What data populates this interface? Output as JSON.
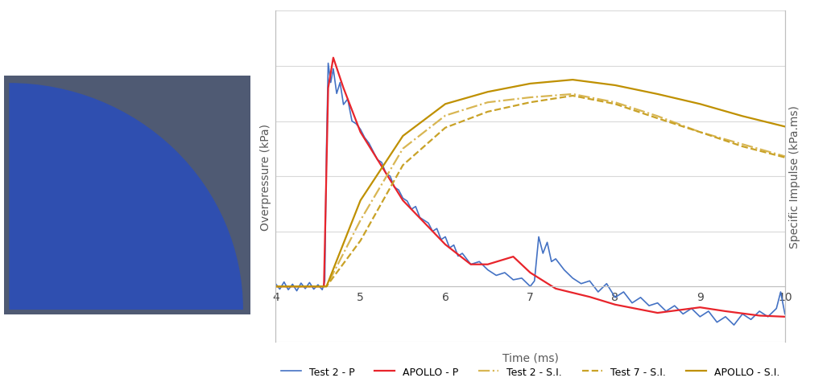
{
  "chart_data": {
    "type": "line",
    "xlabel": "Time (ms)",
    "ylabel": "Overpressure (kPa)",
    "y2label": "Specific Impulse (kPa.ms)",
    "xlim": [
      4,
      10
    ],
    "xticks": [
      4,
      5,
      6,
      7,
      8,
      9,
      10
    ],
    "ylim": [
      -1,
      5
    ],
    "yticks": [
      -1,
      0,
      1,
      2,
      3,
      4,
      5
    ],
    "y2lim": [
      -1,
      5
    ],
    "y2ticks": [
      -1,
      0,
      1,
      2,
      3,
      4,
      5
    ],
    "grid": true,
    "legend": "lower center",
    "tick_labels": "x",
    "series": [
      {
        "name": "Test 2 - P",
        "color": "#4472c4",
        "line_style": "solid",
        "x": [
          4.0,
          4.05,
          4.1,
          4.15,
          4.2,
          4.25,
          4.3,
          4.35,
          4.4,
          4.45,
          4.5,
          4.55,
          4.58,
          4.6,
          4.62,
          4.65,
          4.68,
          4.72,
          4.76,
          4.8,
          4.85,
          4.9,
          4.95,
          5.0,
          5.05,
          5.1,
          5.15,
          5.2,
          5.25,
          5.3,
          5.35,
          5.4,
          5.45,
          5.5,
          5.55,
          5.6,
          5.65,
          5.7,
          5.75,
          5.8,
          5.85,
          5.9,
          5.95,
          6.0,
          6.05,
          6.1,
          6.15,
          6.2,
          6.3,
          6.4,
          6.5,
          6.6,
          6.7,
          6.8,
          6.9,
          7.0,
          7.05,
          7.1,
          7.15,
          7.2,
          7.25,
          7.3,
          7.4,
          7.5,
          7.6,
          7.7,
          7.8,
          7.9,
          8.0,
          8.1,
          8.2,
          8.3,
          8.4,
          8.5,
          8.6,
          8.7,
          8.8,
          8.9,
          9.0,
          9.1,
          9.2,
          9.3,
          9.4,
          9.5,
          9.6,
          9.7,
          9.8,
          9.9,
          9.95,
          10.0
        ],
        "values": [
          0.05,
          -0.05,
          0.08,
          -0.06,
          0.04,
          -0.08,
          0.06,
          -0.04,
          0.07,
          -0.05,
          0.03,
          -0.06,
          0.1,
          2.5,
          4.05,
          3.7,
          3.95,
          3.5,
          3.7,
          3.3,
          3.4,
          3.0,
          2.95,
          2.85,
          2.7,
          2.6,
          2.45,
          2.3,
          2.25,
          2.05,
          2.0,
          1.8,
          1.75,
          1.6,
          1.55,
          1.4,
          1.45,
          1.25,
          1.2,
          1.15,
          1.0,
          1.05,
          0.85,
          0.9,
          0.7,
          0.75,
          0.55,
          0.6,
          0.4,
          0.45,
          0.3,
          0.2,
          0.25,
          0.12,
          0.15,
          0.0,
          0.1,
          0.9,
          0.6,
          0.8,
          0.45,
          0.5,
          0.3,
          0.15,
          0.05,
          0.1,
          -0.1,
          0.05,
          -0.2,
          -0.1,
          -0.3,
          -0.2,
          -0.35,
          -0.3,
          -0.45,
          -0.35,
          -0.5,
          -0.4,
          -0.55,
          -0.45,
          -0.65,
          -0.55,
          -0.7,
          -0.5,
          -0.6,
          -0.45,
          -0.55,
          -0.4,
          -0.1,
          -0.5
        ]
      },
      {
        "name": "APOLLO - P",
        "color": "#e8242b",
        "line_style": "solid",
        "x": [
          4.0,
          4.57,
          4.62,
          4.68,
          4.8,
          5.0,
          5.5,
          6.0,
          6.3,
          6.5,
          6.8,
          7.0,
          7.3,
          7.7,
          8.0,
          8.5,
          9.0,
          9.3,
          9.7,
          10.0
        ],
        "values": [
          0.0,
          0.0,
          3.6,
          4.15,
          3.6,
          2.8,
          1.56,
          0.76,
          0.4,
          0.4,
          0.54,
          0.25,
          -0.04,
          -0.19,
          -0.33,
          -0.48,
          -0.38,
          -0.45,
          -0.53,
          -0.55
        ]
      },
      {
        "name": "Test 2 - S.I.",
        "color": "#d8b653",
        "line_style": "dashdot",
        "axis": "y2",
        "x": [
          4.0,
          4.6,
          5.0,
          5.5,
          6.0,
          6.5,
          7.0,
          7.5,
          8.0,
          8.5,
          9.0,
          9.5,
          10.0
        ],
        "values": [
          0.0,
          0.0,
          1.2,
          2.5,
          3.1,
          3.34,
          3.43,
          3.49,
          3.34,
          3.09,
          2.8,
          2.58,
          2.36
        ]
      },
      {
        "name": "Test 7 - S.I.",
        "color": "#c9a227",
        "line_style": "dashed",
        "axis": "y2",
        "x": [
          4.0,
          4.6,
          5.0,
          5.5,
          6.0,
          6.5,
          7.0,
          7.5,
          8.0,
          8.5,
          9.0,
          9.5,
          10.0
        ],
        "values": [
          0.0,
          0.0,
          0.83,
          2.2,
          2.88,
          3.17,
          3.34,
          3.46,
          3.31,
          3.05,
          2.8,
          2.54,
          2.34
        ]
      },
      {
        "name": "APOLLO - S.I.",
        "color": "#bf9000",
        "line_style": "solid",
        "axis": "y2",
        "x": [
          4.0,
          4.6,
          5.0,
          5.5,
          6.0,
          6.5,
          7.0,
          7.5,
          8.0,
          8.5,
          9.0,
          9.5,
          10.0
        ],
        "values": [
          0.0,
          0.0,
          1.56,
          2.73,
          3.31,
          3.53,
          3.68,
          3.75,
          3.65,
          3.49,
          3.31,
          3.09,
          2.9
        ]
      }
    ]
  }
}
